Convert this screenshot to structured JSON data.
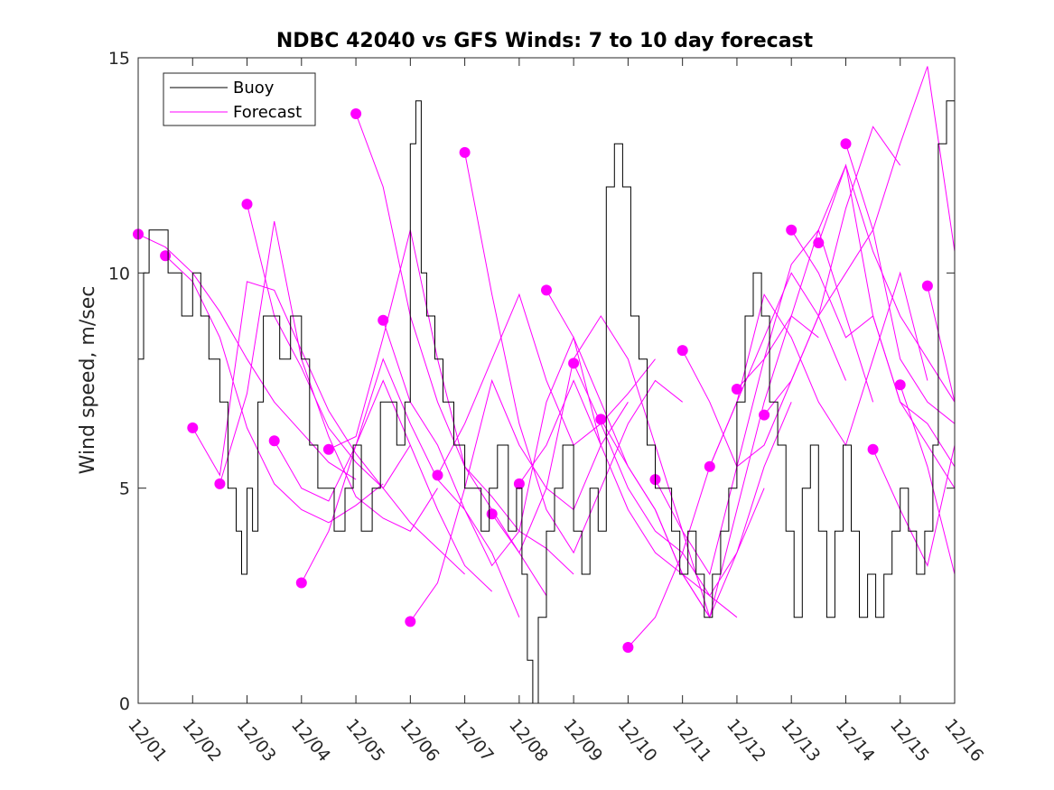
{
  "chart_data": {
    "type": "line",
    "title": "NDBC 42040 vs GFS Winds: 7 to 10 day forecast",
    "xlabel": "",
    "ylabel": "Wind speed, m/sec",
    "xlim": [
      0,
      15
    ],
    "ylim": [
      0,
      15
    ],
    "x_units": "days since 12/01",
    "categories": [
      "12/01",
      "12/02",
      "12/03",
      "12/04",
      "12/05",
      "12/06",
      "12/07",
      "12/08",
      "12/09",
      "12/10",
      "12/11",
      "12/12",
      "12/13",
      "12/14",
      "12/15",
      "12/16"
    ],
    "yticks": [
      0,
      5,
      10,
      15
    ],
    "grid": false,
    "legend_position": "top-left",
    "colors": {
      "buoy": "#000000",
      "forecast": "#ff00ff"
    },
    "series": [
      {
        "name": "Buoy",
        "style": "step line",
        "x": [
          0.0,
          0.1,
          0.2,
          0.35,
          0.55,
          0.8,
          1.0,
          1.15,
          1.3,
          1.5,
          1.65,
          1.8,
          1.9,
          2.0,
          2.1,
          2.2,
          2.3,
          2.45,
          2.6,
          2.8,
          3.0,
          3.15,
          3.3,
          3.45,
          3.6,
          3.8,
          3.95,
          4.1,
          4.3,
          4.45,
          4.6,
          4.75,
          4.9,
          5.0,
          5.1,
          5.2,
          5.3,
          5.45,
          5.6,
          5.8,
          6.0,
          6.15,
          6.3,
          6.45,
          6.6,
          6.8,
          6.95,
          7.05,
          7.15,
          7.25,
          7.35,
          7.5,
          7.65,
          7.8,
          8.0,
          8.15,
          8.3,
          8.45,
          8.6,
          8.75,
          8.9,
          9.05,
          9.2,
          9.35,
          9.5,
          9.65,
          9.8,
          9.95,
          10.1,
          10.25,
          10.4,
          10.55,
          10.7,
          10.85,
          11.0,
          11.15,
          11.3,
          11.45,
          11.6,
          11.75,
          11.9,
          12.05,
          12.2,
          12.35,
          12.5,
          12.65,
          12.8,
          12.95,
          13.1,
          13.25,
          13.4,
          13.55,
          13.7,
          13.85,
          14.0,
          14.15,
          14.3,
          14.45,
          14.6,
          14.7,
          14.85,
          15.0
        ],
        "y": [
          8,
          10,
          11,
          11,
          10,
          9,
          10,
          9,
          8,
          7,
          5,
          4,
          3,
          5,
          4,
          7,
          9,
          9,
          8,
          9,
          8,
          6,
          5,
          5,
          4,
          5,
          6,
          4,
          5,
          7,
          7,
          6,
          7,
          13,
          14,
          10,
          9,
          8,
          7,
          6,
          5,
          5,
          4,
          5,
          6,
          4,
          5,
          3,
          1,
          0,
          2,
          4,
          5,
          6,
          4,
          3,
          5,
          4,
          12,
          13,
          12,
          9,
          8,
          6,
          5,
          5,
          4,
          3,
          4,
          3,
          2,
          3,
          4,
          5,
          7,
          9,
          10,
          9,
          7,
          6,
          4,
          2,
          5,
          6,
          4,
          2,
          4,
          6,
          4,
          2,
          3,
          2,
          3,
          4,
          5,
          4,
          3,
          4,
          6,
          13,
          14,
          11
        ]
      },
      {
        "name": "Forecast",
        "style": "thin lines with filled circle markers at start of each forecast run",
        "runs": [
          {
            "x": [
              0.0,
              0.5,
              1.0,
              1.5,
              2.0,
              2.5,
              3.0,
              3.5,
              4.0
            ],
            "y": [
              10.9,
              10.6,
              10.0,
              9.1,
              8.0,
              7.0,
              6.3,
              5.6,
              5.2
            ]
          },
          {
            "x": [
              0.5,
              1.0,
              1.5,
              2.0,
              2.5,
              3.0,
              3.5,
              4.0,
              4.5
            ],
            "y": [
              10.4,
              9.8,
              8.5,
              6.4,
              5.1,
              4.5,
              4.2,
              4.6,
              5.1
            ]
          },
          {
            "x": [
              1.0,
              1.5,
              2.0,
              2.5,
              3.0,
              3.5,
              4.0,
              4.5,
              5.0
            ],
            "y": [
              6.4,
              5.3,
              9.8,
              9.6,
              8.2,
              6.8,
              5.8,
              5.0,
              6.0
            ]
          },
          {
            "x": [
              1.5,
              2.0,
              2.5,
              3.0,
              3.5,
              4.0,
              4.5,
              5.0,
              5.5
            ],
            "y": [
              5.1,
              7.2,
              11.2,
              8.0,
              6.2,
              4.8,
              4.3,
              4.0,
              5.0
            ]
          },
          {
            "x": [
              2.0,
              2.5,
              3.0,
              3.5,
              4.0,
              4.5,
              5.0,
              5.5,
              6.0
            ],
            "y": [
              11.6,
              9.0,
              7.8,
              6.4,
              5.6,
              5.0,
              4.2,
              3.6,
              3.0
            ]
          },
          {
            "x": [
              2.5,
              3.0,
              3.5,
              4.0,
              4.5,
              5.0,
              5.5,
              6.0,
              6.5
            ],
            "y": [
              6.1,
              5.0,
              4.7,
              6.0,
              7.5,
              6.0,
              4.5,
              3.2,
              2.6
            ]
          },
          {
            "x": [
              3.0,
              3.5,
              4.0,
              4.5,
              5.0,
              5.5,
              6.0,
              6.5,
              7.0
            ],
            "y": [
              2.8,
              4.0,
              6.0,
              8.0,
              6.5,
              5.2,
              4.5,
              3.5,
              2.0
            ]
          },
          {
            "x": [
              3.5,
              4.0,
              4.5,
              5.0,
              5.5,
              6.0,
              6.5,
              7.0,
              7.5
            ],
            "y": [
              5.9,
              6.2,
              8.5,
              11.0,
              8.0,
              5.5,
              4.5,
              3.5,
              2.5
            ]
          },
          {
            "x": [
              4.0,
              4.5,
              5.0,
              5.5,
              6.0,
              6.5,
              7.0,
              7.5,
              8.0
            ],
            "y": [
              13.7,
              12.0,
              9.0,
              7.0,
              5.5,
              4.8,
              4.0,
              3.6,
              3.0
            ]
          },
          {
            "x": [
              4.5,
              5.0,
              5.5,
              6.0,
              6.5,
              7.0,
              7.5,
              8.0,
              8.5
            ],
            "y": [
              8.9,
              7.0,
              6.0,
              4.5,
              3.2,
              4.0,
              7.0,
              8.5,
              6.0
            ]
          },
          {
            "x": [
              5.0,
              5.5,
              6.0,
              6.5,
              7.0,
              7.5,
              8.0,
              8.5,
              9.0
            ],
            "y": [
              1.9,
              2.8,
              5.0,
              7.5,
              6.0,
              5.0,
              4.5,
              6.0,
              7.0
            ]
          },
          {
            "x": [
              5.5,
              6.0,
              6.5,
              7.0,
              7.5,
              8.0,
              8.5,
              9.0,
              9.5
            ],
            "y": [
              5.3,
              6.5,
              8.0,
              9.5,
              7.5,
              6.0,
              6.5,
              7.2,
              8.0
            ]
          },
          {
            "x": [
              6.0,
              6.5,
              7.0,
              7.5,
              8.0,
              8.5,
              9.0,
              9.5,
              10.0
            ],
            "y": [
              12.8,
              9.5,
              6.5,
              4.5,
              3.5,
              5.0,
              6.5,
              7.5,
              7.0
            ]
          },
          {
            "x": [
              6.5,
              7.0,
              7.5,
              8.0,
              8.5,
              9.0,
              9.5,
              10.0,
              10.5
            ],
            "y": [
              4.4,
              3.5,
              5.0,
              8.0,
              9.0,
              8.0,
              6.0,
              4.0,
              2.0
            ]
          },
          {
            "x": [
              7.0,
              7.5,
              8.0,
              8.5,
              9.0,
              9.5,
              10.0,
              10.5,
              11.0
            ],
            "y": [
              5.1,
              6.0,
              7.5,
              6.0,
              4.5,
              3.5,
              3.0,
              2.5,
              2.0
            ]
          },
          {
            "x": [
              7.5,
              8.0,
              8.5,
              9.0,
              9.5,
              10.0,
              10.5,
              11.0,
              11.5
            ],
            "y": [
              9.6,
              8.5,
              7.0,
              5.5,
              4.5,
              3.0,
              2.0,
              3.5,
              5.0
            ]
          },
          {
            "x": [
              8.0,
              8.5,
              9.0,
              9.5,
              10.0,
              10.5,
              11.0,
              11.5,
              12.0
            ],
            "y": [
              7.9,
              6.5,
              5.0,
              4.0,
              3.5,
              2.5,
              3.5,
              5.5,
              7.0
            ]
          },
          {
            "x": [
              8.5,
              9.0,
              9.5,
              10.0,
              10.5,
              11.0,
              11.5,
              12.0,
              12.5
            ],
            "y": [
              6.6,
              5.5,
              4.5,
              3.0,
              2.0,
              4.5,
              7.0,
              9.0,
              8.5
            ]
          },
          {
            "x": [
              9.0,
              9.5,
              10.0,
              10.5,
              11.0,
              11.5,
              12.0,
              12.5,
              13.0
            ],
            "y": [
              1.3,
              2.0,
              3.5,
              5.5,
              7.0,
              8.5,
              10.0,
              9.0,
              7.5
            ]
          },
          {
            "x": [
              9.5,
              10.0,
              10.5,
              11.0,
              11.5,
              12.0,
              12.5,
              13.0,
              13.5
            ],
            "y": [
              5.2,
              4.0,
              3.0,
              5.5,
              8.0,
              10.2,
              11.0,
              9.0,
              7.0
            ]
          },
          {
            "x": [
              10.0,
              10.5,
              11.0,
              11.5,
              12.0,
              12.5,
              13.0,
              13.5,
              14.0
            ],
            "y": [
              8.2,
              7.0,
              5.5,
              6.0,
              7.5,
              9.0,
              11.5,
              13.4,
              12.5
            ]
          },
          {
            "x": [
              10.5,
              11.0,
              11.5,
              12.0,
              12.5,
              13.0,
              13.5,
              14.0,
              14.5
            ],
            "y": [
              5.5,
              7.0,
              9.5,
              8.5,
              7.0,
              6.0,
              8.0,
              10.0,
              7.5
            ]
          },
          {
            "x": [
              11.0,
              11.5,
              12.0,
              12.5,
              13.0,
              13.5,
              14.0,
              14.5,
              15.0
            ],
            "y": [
              7.3,
              8.0,
              9.0,
              11.0,
              12.5,
              10.5,
              9.0,
              8.0,
              7.0
            ]
          },
          {
            "x": [
              11.5,
              12.0,
              12.5,
              13.0,
              13.5,
              14.0,
              14.5,
              15.0
            ],
            "y": [
              6.7,
              7.5,
              9.0,
              10.0,
              11.0,
              13.0,
              14.8,
              10.5
            ]
          },
          {
            "x": [
              12.0,
              12.5,
              13.0,
              13.5,
              14.0,
              14.5,
              15.0
            ],
            "y": [
              11.0,
              10.0,
              8.5,
              9.0,
              7.0,
              6.5,
              5.5
            ]
          },
          {
            "x": [
              12.5,
              13.0,
              13.5,
              14.0,
              14.5,
              15.0
            ],
            "y": [
              10.7,
              12.5,
              9.0,
              7.0,
              6.0,
              5.0
            ]
          },
          {
            "x": [
              13.0,
              13.5,
              14.0,
              14.5,
              15.0
            ],
            "y": [
              13.0,
              11.0,
              8.0,
              7.0,
              6.5
            ]
          },
          {
            "x": [
              13.5,
              14.0,
              14.5,
              15.0
            ],
            "y": [
              5.9,
              4.5,
              3.2,
              6.0
            ]
          },
          {
            "x": [
              14.0,
              14.5,
              15.0
            ],
            "y": [
              7.4,
              5.5,
              3.0
            ]
          },
          {
            "x": [
              14.5,
              15.0
            ],
            "y": [
              9.7,
              7.0
            ]
          }
        ]
      }
    ]
  }
}
